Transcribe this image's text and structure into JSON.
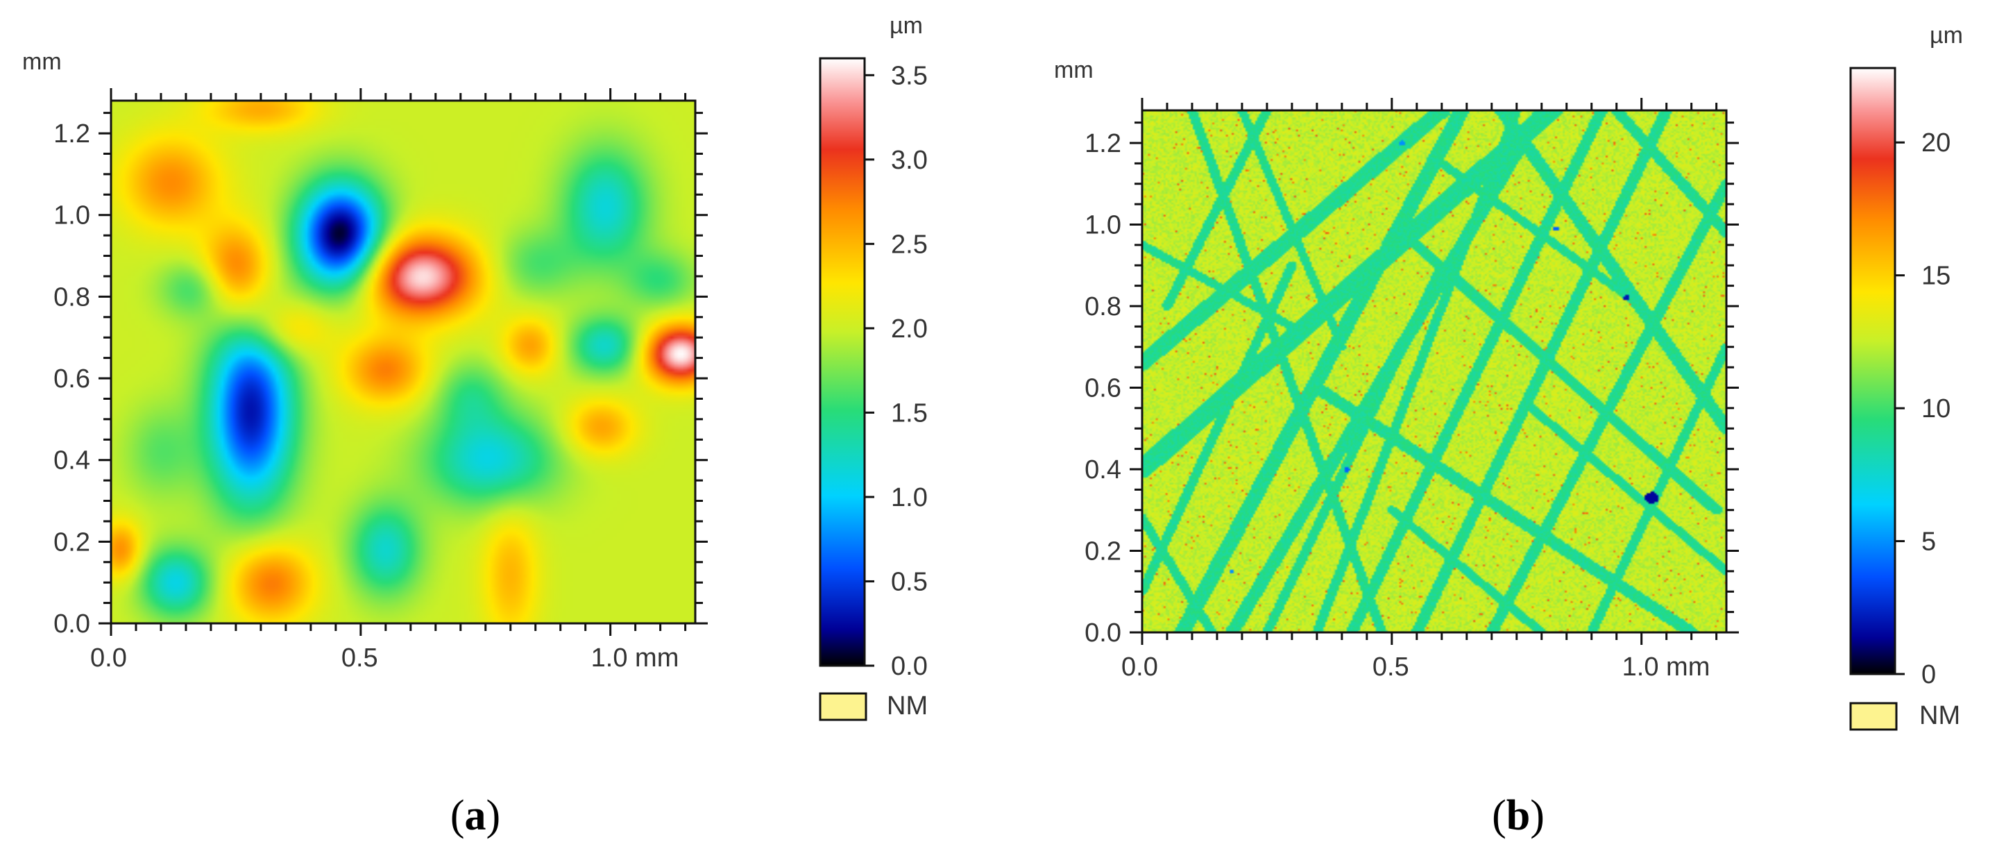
{
  "chart_data": [
    {
      "type": "heatmap",
      "panel_label": "a",
      "x_unit": "mm",
      "y_unit": "mm",
      "x_ticks": [
        {
          "value": 0.0,
          "label": "0.0"
        },
        {
          "value": 0.5,
          "label": "0.5"
        },
        {
          "value": 1.0,
          "label": "1.0 mm"
        }
      ],
      "y_ticks": [
        {
          "value": 0.0,
          "label": "0.0"
        },
        {
          "value": 0.2,
          "label": "0.2"
        },
        {
          "value": 0.4,
          "label": "0.4"
        },
        {
          "value": 0.6,
          "label": "0.6"
        },
        {
          "value": 0.8,
          "label": "0.8"
        },
        {
          "value": 1.0,
          "label": "1.0"
        },
        {
          "value": 1.2,
          "label": "1.2"
        }
      ],
      "xlim": [
        0,
        1.17
      ],
      "ylim": [
        0,
        1.28
      ],
      "colorbar": {
        "unit": "µm",
        "range": [
          0,
          3.6
        ],
        "ticks": [
          {
            "value": 0.0,
            "label": "0.0"
          },
          {
            "value": 0.5,
            "label": "0.5"
          },
          {
            "value": 1.0,
            "label": "1.0"
          },
          {
            "value": 1.5,
            "label": "1.5"
          },
          {
            "value": 2.0,
            "label": "2.0"
          },
          {
            "value": 2.5,
            "label": "2.5"
          },
          {
            "value": 3.0,
            "label": "3.0"
          },
          {
            "value": 3.5,
            "label": "3.5"
          }
        ],
        "nm_label": "NM"
      },
      "surface": {
        "base": 2.0,
        "features": [
          {
            "x": 0.46,
            "y": 0.95,
            "sx": 0.06,
            "sy": 0.09,
            "amp": -2.0
          },
          {
            "x": 0.28,
            "y": 0.52,
            "sx": 0.06,
            "sy": 0.16,
            "amp": -1.7
          },
          {
            "x": 0.62,
            "y": 0.85,
            "sx": 0.08,
            "sy": 0.07,
            "amp": 1.55
          },
          {
            "x": 0.25,
            "y": 0.86,
            "sx": 0.05,
            "sy": 0.08,
            "amp": 0.9
          },
          {
            "x": 0.12,
            "y": 1.08,
            "sx": 0.07,
            "sy": 0.08,
            "amp": 0.7
          },
          {
            "x": 0.55,
            "y": 0.62,
            "sx": 0.06,
            "sy": 0.06,
            "amp": 0.75
          },
          {
            "x": 0.35,
            "y": 0.72,
            "sx": 0.06,
            "sy": 0.05,
            "amp": 0.5
          },
          {
            "x": 0.32,
            "y": 0.1,
            "sx": 0.06,
            "sy": 0.07,
            "amp": 0.8
          },
          {
            "x": 0.8,
            "y": 0.12,
            "sx": 0.04,
            "sy": 0.12,
            "amp": 0.5
          },
          {
            "x": 0.13,
            "y": 0.1,
            "sx": 0.05,
            "sy": 0.06,
            "amp": -0.9
          },
          {
            "x": 0.55,
            "y": 0.18,
            "sx": 0.05,
            "sy": 0.08,
            "amp": -0.8
          },
          {
            "x": 0.76,
            "y": 0.4,
            "sx": 0.09,
            "sy": 0.08,
            "amp": -0.9
          },
          {
            "x": 0.99,
            "y": 1.02,
            "sx": 0.06,
            "sy": 0.1,
            "amp": -0.85
          },
          {
            "x": 0.99,
            "y": 0.68,
            "sx": 0.05,
            "sy": 0.05,
            "amp": -0.8
          },
          {
            "x": 1.1,
            "y": 0.84,
            "sx": 0.05,
            "sy": 0.05,
            "amp": -0.45
          },
          {
            "x": 1.14,
            "y": 0.66,
            "sx": 0.05,
            "sy": 0.05,
            "amp": 1.6
          },
          {
            "x": 0.84,
            "y": 0.68,
            "sx": 0.04,
            "sy": 0.05,
            "amp": 0.6
          },
          {
            "x": 0.98,
            "y": 0.48,
            "sx": 0.05,
            "sy": 0.05,
            "amp": 0.6
          },
          {
            "x": 0.17,
            "y": 0.82,
            "sx": 0.05,
            "sy": 0.05,
            "amp": -0.5
          },
          {
            "x": 0.72,
            "y": 0.56,
            "sx": 0.05,
            "sy": 0.06,
            "amp": -0.45
          },
          {
            "x": 0.1,
            "y": 0.42,
            "sx": 0.05,
            "sy": 0.08,
            "amp": -0.35
          },
          {
            "x": 0.85,
            "y": 0.88,
            "sx": 0.06,
            "sy": 0.06,
            "amp": -0.4
          },
          {
            "x": 0.3,
            "y": 1.26,
            "sx": 0.08,
            "sy": 0.04,
            "amp": 0.55
          },
          {
            "x": 0.02,
            "y": 0.18,
            "sx": 0.03,
            "sy": 0.05,
            "amp": 0.7
          }
        ]
      }
    },
    {
      "type": "heatmap",
      "panel_label": "b",
      "x_unit": "mm",
      "y_unit": "mm",
      "x_ticks": [
        {
          "value": 0.0,
          "label": "0.0"
        },
        {
          "value": 0.5,
          "label": "0.5"
        },
        {
          "value": 1.0,
          "label": "1.0 mm"
        }
      ],
      "y_ticks": [
        {
          "value": 0.0,
          "label": "0.0"
        },
        {
          "value": 0.2,
          "label": "0.2"
        },
        {
          "value": 0.4,
          "label": "0.4"
        },
        {
          "value": 0.6,
          "label": "0.6"
        },
        {
          "value": 0.8,
          "label": "0.8"
        },
        {
          "value": 1.0,
          "label": "1.0"
        },
        {
          "value": 1.2,
          "label": "1.2"
        }
      ],
      "xlim": [
        0,
        1.17
      ],
      "ylim": [
        0,
        1.28
      ],
      "colorbar": {
        "unit": "µm",
        "range": [
          0,
          22.8
        ],
        "ticks": [
          {
            "value": 0,
            "label": "0"
          },
          {
            "value": 5,
            "label": "5"
          },
          {
            "value": 10,
            "label": "10"
          },
          {
            "value": 15,
            "label": "15"
          },
          {
            "value": 20,
            "label": "20"
          }
        ],
        "nm_label": "NM"
      },
      "surface": {
        "base": 12.5,
        "scratch_value": 9.0,
        "scratches": [
          {
            "x1": 0.0,
            "y1": 0.4,
            "x2": 0.82,
            "y2": 1.28,
            "w": 0.022
          },
          {
            "x1": 0.0,
            "y1": 0.66,
            "x2": 0.6,
            "y2": 1.28,
            "w": 0.018
          },
          {
            "x1": 0.08,
            "y1": 0.0,
            "x2": 0.64,
            "y2": 1.28,
            "w": 0.016
          },
          {
            "x1": 0.18,
            "y1": 0.0,
            "x2": 0.8,
            "y2": 1.28,
            "w": 0.014
          },
          {
            "x1": 0.42,
            "y1": 0.0,
            "x2": 0.92,
            "y2": 1.28,
            "w": 0.012
          },
          {
            "x1": 0.55,
            "y1": 0.0,
            "x2": 1.05,
            "y2": 1.28,
            "w": 0.012
          },
          {
            "x1": 0.7,
            "y1": 0.0,
            "x2": 1.17,
            "y2": 1.1,
            "w": 0.012
          },
          {
            "x1": 0.25,
            "y1": 0.0,
            "x2": 0.6,
            "y2": 0.9,
            "w": 0.01
          },
          {
            "x1": 0.0,
            "y1": 0.1,
            "x2": 0.3,
            "y2": 0.9,
            "w": 0.01
          },
          {
            "x1": 0.05,
            "y1": 0.8,
            "x2": 0.25,
            "y2": 1.28,
            "w": 0.01
          },
          {
            "x1": 0.35,
            "y1": 0.0,
            "x2": 0.75,
            "y2": 1.28,
            "w": 0.01
          },
          {
            "x1": 0.9,
            "y1": 0.0,
            "x2": 1.17,
            "y2": 0.7,
            "w": 0.01
          },
          {
            "x1": 0.1,
            "y1": 1.28,
            "x2": 0.48,
            "y2": 0.0,
            "w": 0.01
          },
          {
            "x1": 0.95,
            "y1": 1.28,
            "x2": 1.17,
            "y2": 0.98,
            "w": 0.012
          },
          {
            "x1": 0.2,
            "y1": 1.28,
            "x2": 0.4,
            "y2": 0.7,
            "w": 0.009
          },
          {
            "x1": 0.0,
            "y1": 0.28,
            "x2": 0.14,
            "y2": 0.0,
            "w": 0.01
          },
          {
            "x1": 0.72,
            "y1": 1.28,
            "x2": 1.17,
            "y2": 0.5,
            "w": 0.014
          },
          {
            "x1": 0.35,
            "y1": 0.6,
            "x2": 1.1,
            "y2": 0.0,
            "w": 0.014
          },
          {
            "x1": 0.0,
            "y1": 0.95,
            "x2": 0.3,
            "y2": 0.75,
            "w": 0.01
          },
          {
            "x1": 0.55,
            "y1": 0.95,
            "x2": 1.15,
            "y2": 0.3,
            "w": 0.012
          },
          {
            "x1": 0.6,
            "y1": 1.15,
            "x2": 1.0,
            "y2": 0.8,
            "w": 0.01
          },
          {
            "x1": 0.78,
            "y1": 0.55,
            "x2": 1.17,
            "y2": 0.15,
            "w": 0.01
          },
          {
            "x1": 0.5,
            "y1": 0.3,
            "x2": 0.8,
            "y2": 0.0,
            "w": 0.01
          }
        ],
        "pits": [
          {
            "x": 1.02,
            "y": 0.33,
            "r": 0.014,
            "value": 1.5
          },
          {
            "x": 0.97,
            "y": 0.82,
            "r": 0.007,
            "value": 2.0
          },
          {
            "x": 0.83,
            "y": 0.99,
            "r": 0.006,
            "value": 4.0
          },
          {
            "x": 0.52,
            "y": 1.2,
            "r": 0.006,
            "value": 5.0
          },
          {
            "x": 0.41,
            "y": 0.4,
            "r": 0.006,
            "value": 4.0
          },
          {
            "x": 0.18,
            "y": 0.15,
            "r": 0.005,
            "value": 5.0
          }
        ]
      }
    }
  ],
  "captions": {
    "a": "a",
    "b": "b"
  }
}
